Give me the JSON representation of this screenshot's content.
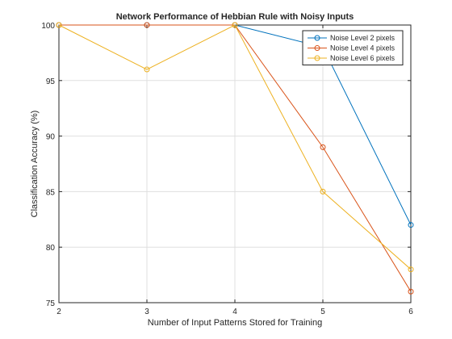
{
  "chart_data": {
    "type": "line",
    "title": "Network Performance of Hebbian Rule with Noisy Inputs",
    "xlabel": "Number of Input Patterns Stored for Training",
    "ylabel": "Classification Accuracy (%)",
    "x": [
      2,
      3,
      4,
      5,
      6
    ],
    "xlim": [
      2,
      6
    ],
    "ylim": [
      75,
      100
    ],
    "xticks": [
      2,
      3,
      4,
      5,
      6
    ],
    "yticks": [
      75,
      80,
      85,
      90,
      95,
      100
    ],
    "grid": true,
    "legend_position": "top-right",
    "marker": "circle",
    "series": [
      {
        "name": "Noise Level 2 pixels",
        "color": "#0072BD",
        "values": [
          100,
          100,
          100,
          98,
          82
        ]
      },
      {
        "name": "Noise Level 4 pixels",
        "color": "#D95319",
        "values": [
          100,
          100,
          100,
          89,
          76
        ]
      },
      {
        "name": "Noise Level 6 pixels",
        "color": "#EDB120",
        "values": [
          100,
          96,
          100,
          85,
          78
        ]
      }
    ]
  }
}
